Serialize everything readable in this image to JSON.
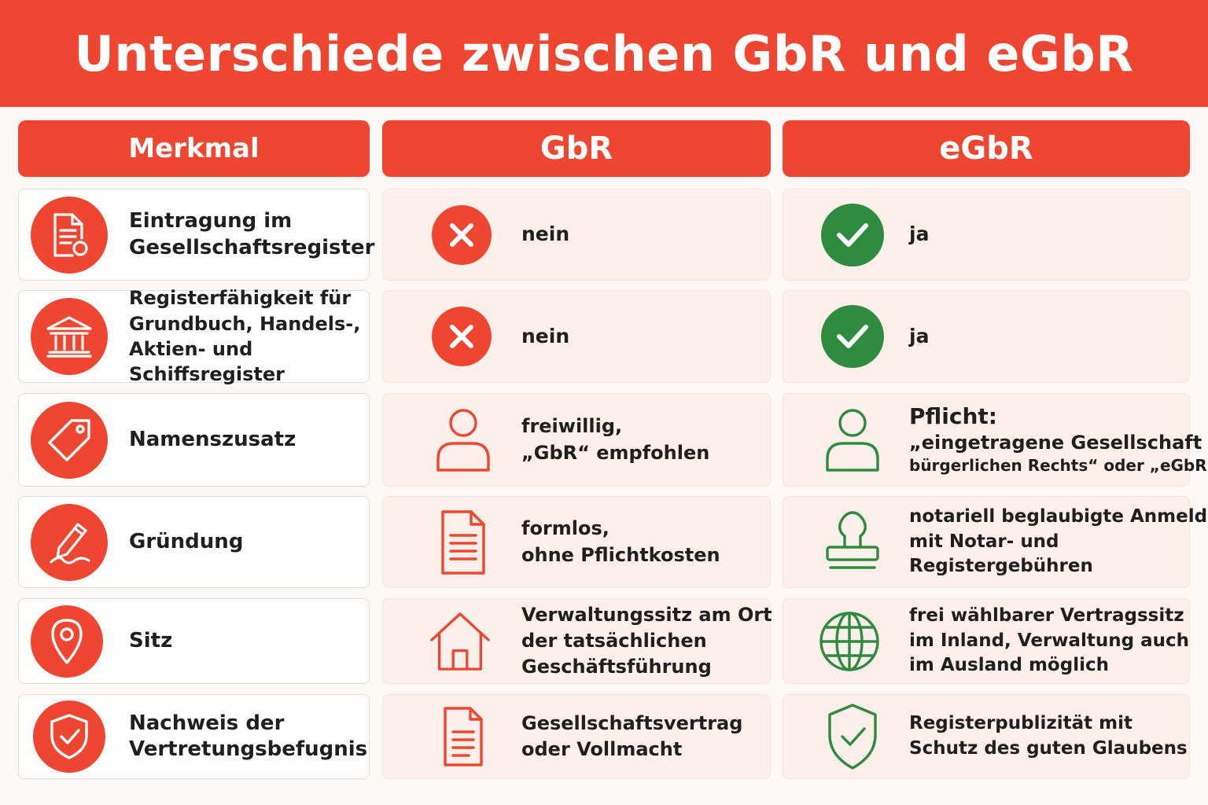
{
  "title": "Unterschiede zwischen GbR und eGbR",
  "columns": {
    "feature": "Merkmal",
    "gbr": "GbR",
    "egbr": "eGbR"
  },
  "colors": {
    "accent": "#ee4631",
    "positive": "#2e8b3f",
    "cell_bg": "#fdf0ea"
  },
  "rows": [
    {
      "feature": [
        "Eintragung im",
        "Gesellschaftsregister"
      ],
      "feature_icon": "document-registration-icon",
      "gbr": {
        "icon": "cross-icon",
        "text": [
          "nein"
        ]
      },
      "egbr": {
        "icon": "check-icon",
        "text": [
          "ja"
        ]
      }
    },
    {
      "feature": [
        "Registerfähigkeit für",
        "Grundbuch, Handels-,",
        "Aktien- und Schiffsregister"
      ],
      "feature_icon": "institution-building-icon",
      "gbr": {
        "icon": "cross-icon",
        "text": [
          "nein"
        ]
      },
      "egbr": {
        "icon": "check-icon",
        "text": [
          "ja"
        ]
      }
    },
    {
      "feature": [
        "Namenszusatz"
      ],
      "feature_icon": "tag-icon",
      "gbr": {
        "icon": "person-icon",
        "text": [
          "freiwillig,",
          "„GbR“ empfohlen"
        ]
      },
      "egbr": {
        "icon": "person-icon",
        "title": "Pflicht:",
        "text": [
          "„eingetragene Gesellschaft",
          "bürgerlichen Rechts“ oder „eGbR“"
        ]
      }
    },
    {
      "feature": [
        "Gründung"
      ],
      "feature_icon": "pen-signature-icon",
      "gbr": {
        "icon": "document-icon",
        "text": [
          "formlos,",
          "ohne Pflichtkosten"
        ]
      },
      "egbr": {
        "icon": "stamp-icon",
        "text": [
          "notariell beglaubigte Anmeldung",
          "mit Notar- und",
          "Registergebühren"
        ]
      }
    },
    {
      "feature": [
        "Sitz"
      ],
      "feature_icon": "location-pin-icon",
      "gbr": {
        "icon": "house-icon",
        "text": [
          "Verwaltungssitz am Ort",
          "der tatsächlichen",
          "Geschäftsführung"
        ]
      },
      "egbr": {
        "icon": "globe-icon",
        "text": [
          "frei wählbarer Vertragssitz",
          "im Inland, Verwaltung auch",
          "im Ausland möglich"
        ]
      }
    },
    {
      "feature": [
        "Nachweis der",
        "Vertretungsbefugnis"
      ],
      "feature_icon": "shield-check-icon",
      "gbr": {
        "icon": "document-icon",
        "text": [
          "Gesellschaftsvertrag",
          "oder Vollmacht"
        ]
      },
      "egbr": {
        "icon": "shield-check-icon",
        "text": [
          "Registerpublizität mit",
          "Schutz des guten Glaubens"
        ]
      }
    }
  ]
}
